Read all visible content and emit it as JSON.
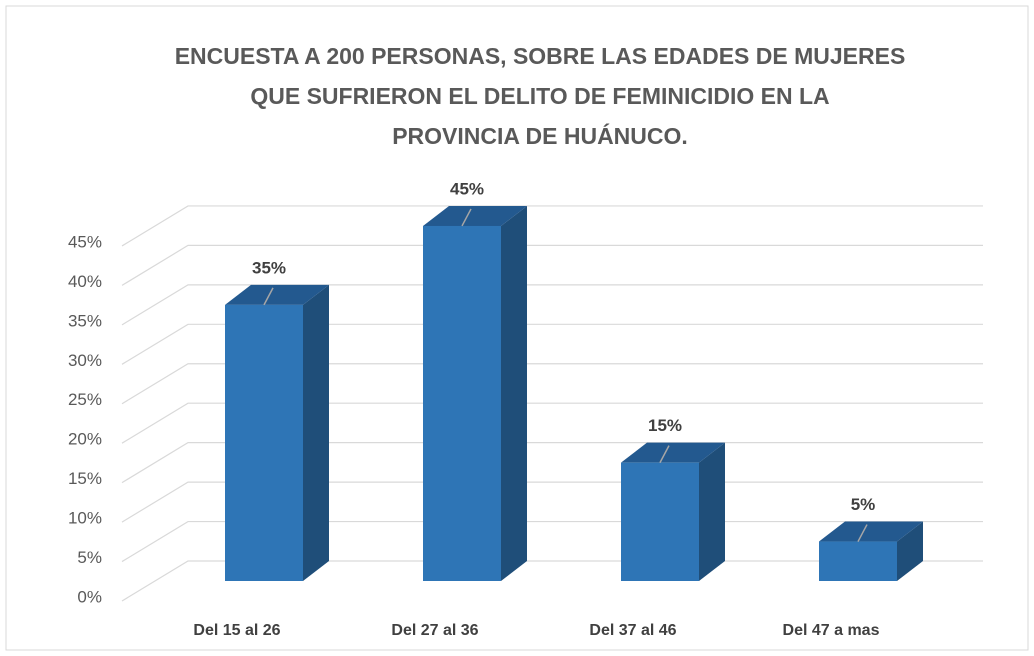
{
  "chart_data": {
    "type": "bar3d",
    "title": [
      "ENCUESTA A 200 PERSONAS, SOBRE LAS EDADES DE MUJERES",
      "QUE SUFRIERON EL DELITO DE FEMINICIDIO EN LA",
      "PROVINCIA DE HUÁNUCO."
    ],
    "categories": [
      "Del 15 al 26",
      "Del 27 al 36",
      "Del 37 al 46",
      "Del 47 a mas"
    ],
    "values": [
      35,
      45,
      15,
      5
    ],
    "value_labels": [
      "35%",
      "45%",
      "15%",
      "5%"
    ],
    "color": "#2e75b6",
    "ylim": [
      0,
      50
    ],
    "yticks": [
      {
        "value": 0,
        "label": "0%"
      },
      {
        "value": 5,
        "label": "5%"
      },
      {
        "value": 10,
        "label": "10%"
      },
      {
        "value": 15,
        "label": "15%"
      },
      {
        "value": 20,
        "label": "20%"
      },
      {
        "value": 25,
        "label": "25%"
      },
      {
        "value": 30,
        "label": "30%"
      },
      {
        "value": 35,
        "label": "35%"
      },
      {
        "value": 40,
        "label": "40%"
      },
      {
        "value": 45,
        "label": "45%"
      }
    ],
    "grid": true
  }
}
